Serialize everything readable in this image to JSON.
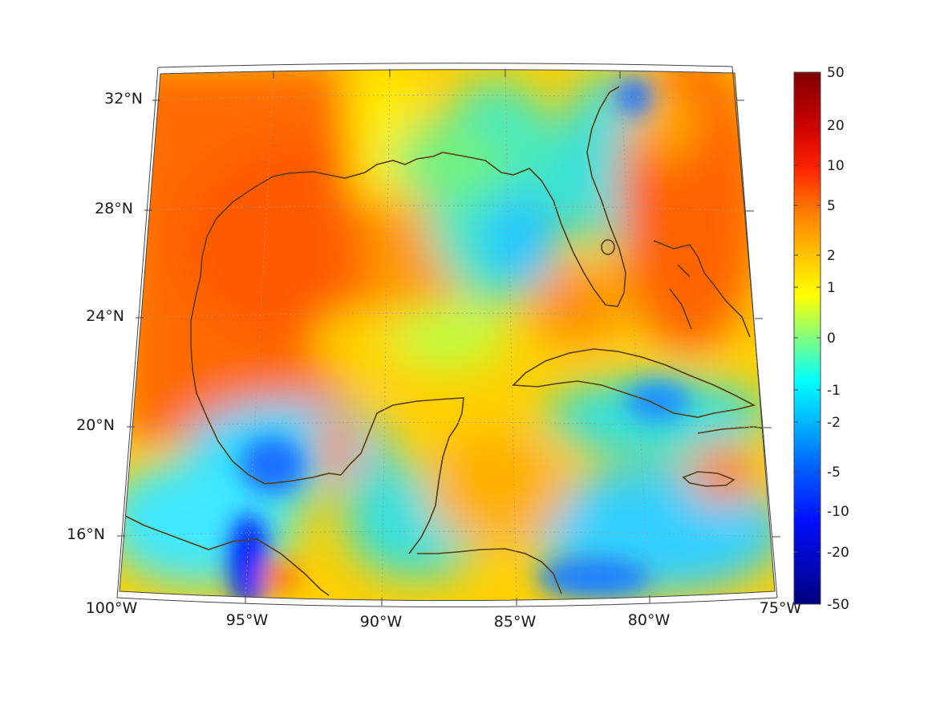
{
  "map": {
    "lat_labels": [
      "32°N",
      "28°N",
      "24°N",
      "20°N",
      "16°N"
    ],
    "lon_labels": [
      "100°W",
      "95°W",
      "90°W",
      "85°W",
      "80°W",
      "75°W"
    ],
    "coast_color": "#5a3c10",
    "grid_color": "#9a9a9a"
  },
  "colorbar": {
    "tick_labels": [
      "50",
      "20",
      "10",
      "5",
      "2",
      "1",
      "0",
      "-1",
      "-2",
      "-5",
      "-10",
      "-20",
      "-50"
    ],
    "colors": [
      "#8b0000",
      "#ff0000",
      "#ff6a00",
      "#ffb000",
      "#ffff00",
      "#b4ff4a",
      "#00ffff",
      "#0096ff",
      "#0000ff",
      "#00008b"
    ]
  }
}
